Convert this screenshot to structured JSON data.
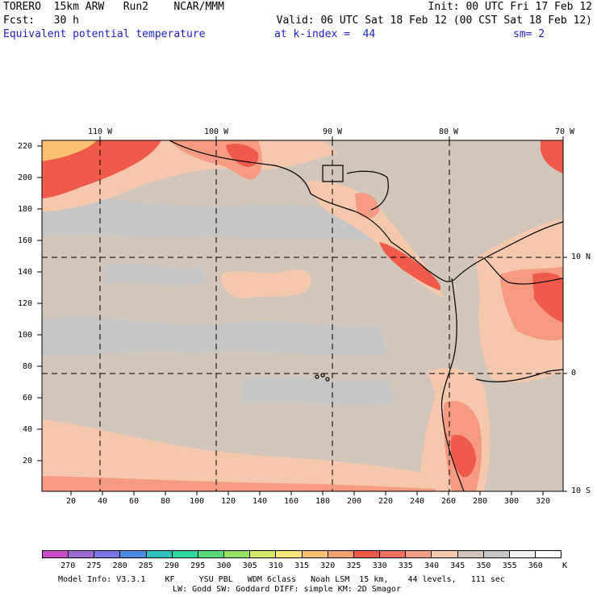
{
  "header": {
    "line1_left": "TORERO  15km ARW   Run2    NCAR/MMM",
    "line1_right": "Init: 00 UTC Fri 17 Feb 12",
    "line2_left": "Fcst:   30 h",
    "line2_right": "Valid: 06 UTC Sat 18 Feb 12 (00 CST Sat 18 Feb 12)",
    "field": "Equivalent potential temperature",
    "level": "at k-index =  44",
    "smooth": "sm= 2"
  },
  "map": {
    "lon_labels": [
      "110 W",
      "100 W",
      "90 W",
      "80 W",
      "70 W"
    ],
    "lat_labels": [
      "10 N",
      "0",
      "10 S"
    ],
    "y_ticks": [
      "220",
      "200",
      "180",
      "160",
      "140",
      "120",
      "100",
      "80",
      "60",
      "40",
      "20"
    ],
    "x_ticks": [
      "20",
      "40",
      "60",
      "80",
      "100",
      "120",
      "140",
      "160",
      "180",
      "200",
      "220",
      "240",
      "260",
      "280",
      "300",
      "320"
    ],
    "colors": {
      "land_bg": "#d2c6ba",
      "cool": "#c6c6c6",
      "warm": "#f5c8ad",
      "warmer": "#f59a83",
      "hot": "#ef5a4b",
      "hottest": "#f9c070",
      "coast": "#000000"
    }
  },
  "colorbar": {
    "labels": [
      "270",
      "275",
      "280",
      "285",
      "290",
      "295",
      "300",
      "305",
      "310",
      "315",
      "320",
      "325",
      "330",
      "335",
      "340",
      "345",
      "350",
      "355",
      "360"
    ],
    "unit": "K",
    "colors": [
      "#c84cc8",
      "#9b6ad2",
      "#7a78e0",
      "#4c8be0",
      "#2ec0bd",
      "#2ed79b",
      "#5ad977",
      "#96e063",
      "#d2ea66",
      "#f7e879",
      "#f9c070",
      "#f5a06e",
      "#ef5a4b",
      "#ef7060",
      "#f59a83",
      "#f5c8ad",
      "#d2c6ba",
      "#c6c6c6",
      "#f2f2f2",
      "#ffffff"
    ]
  },
  "footer": {
    "line1": "Model Info: V3.3.1    KF     YSU PBL   WDM 6class   Noah LSM  15 km,    44 levels,   111 sec",
    "line2": "LW: Godd SW: Goddard DIFF: simple KM: 2D Smagor"
  }
}
